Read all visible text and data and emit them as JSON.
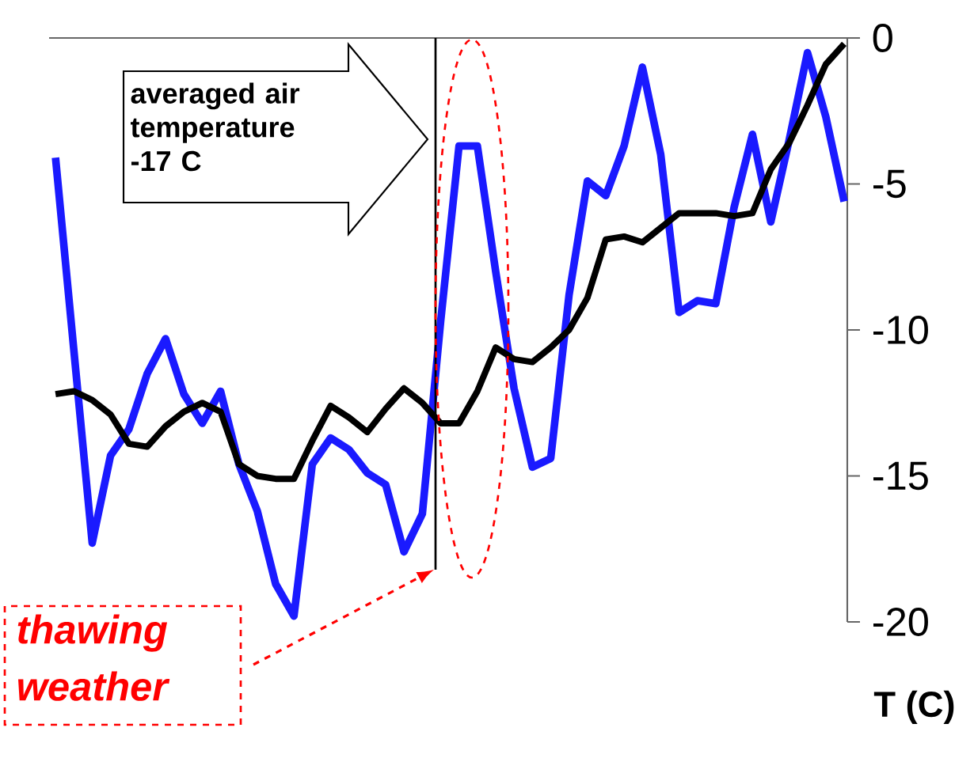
{
  "chart_data": {
    "type": "line",
    "categories": [
      null,
      null,
      null,
      null,
      null,
      null,
      null,
      null,
      null,
      null,
      null,
      null,
      null,
      null,
      null,
      null,
      null,
      null,
      null,
      null,
      null,
      null,
      null,
      null,
      null,
      null,
      null,
      null,
      null,
      null,
      null,
      null,
      null,
      null,
      null,
      null,
      null,
      null,
      null,
      null,
      null,
      null,
      null,
      null
    ],
    "series": [
      {
        "color": "#1a1aff",
        "values": [
          -4.1,
          -10.7,
          -17.3,
          -14.3,
          -13.4,
          -11.5,
          -10.3,
          -12.2,
          -13.2,
          -12.1,
          -14.6,
          -16.2,
          -18.7,
          -19.8,
          -14.6,
          -13.7,
          -14.1,
          -14.9,
          -15.3,
          -17.6,
          -16.3,
          -9.7,
          -3.7,
          -3.7,
          -8.0,
          -12.0,
          -14.7,
          -14.4,
          -8.8,
          -4.9,
          -5.4,
          -3.7,
          -1.0,
          -4.0,
          -9.4,
          -9.0,
          -9.1,
          -5.8,
          -3.3,
          -6.3,
          -3.5,
          -0.5,
          -2.7,
          -5.6
        ]
      },
      {
        "color": "#000000",
        "values": [
          -12.2,
          -12.1,
          -12.4,
          -12.9,
          -13.9,
          -14.0,
          -13.3,
          -12.8,
          -12.5,
          -12.8,
          -14.6,
          -15.0,
          -15.1,
          -15.1,
          -13.8,
          -12.6,
          -13.0,
          -13.5,
          -12.7,
          -12.0,
          -12.5,
          -13.2,
          -13.2,
          -12.1,
          -10.6,
          -11.0,
          -11.1,
          -10.6,
          -10.0,
          -8.9,
          -6.9,
          -6.8,
          -7.0,
          -6.5,
          -6.0,
          -6.0,
          -6.0,
          -6.1,
          -6.0,
          -4.5,
          -3.6,
          -2.3,
          -0.9,
          -0.2
        ]
      }
    ],
    "ylim": [
      -20,
      0
    ],
    "yticks": [
      -20,
      -15,
      -10,
      -5,
      0
    ],
    "ylabel": "T (C)",
    "annotations": [
      "averaged air temperature -17 C",
      "thawing weather"
    ]
  }
}
